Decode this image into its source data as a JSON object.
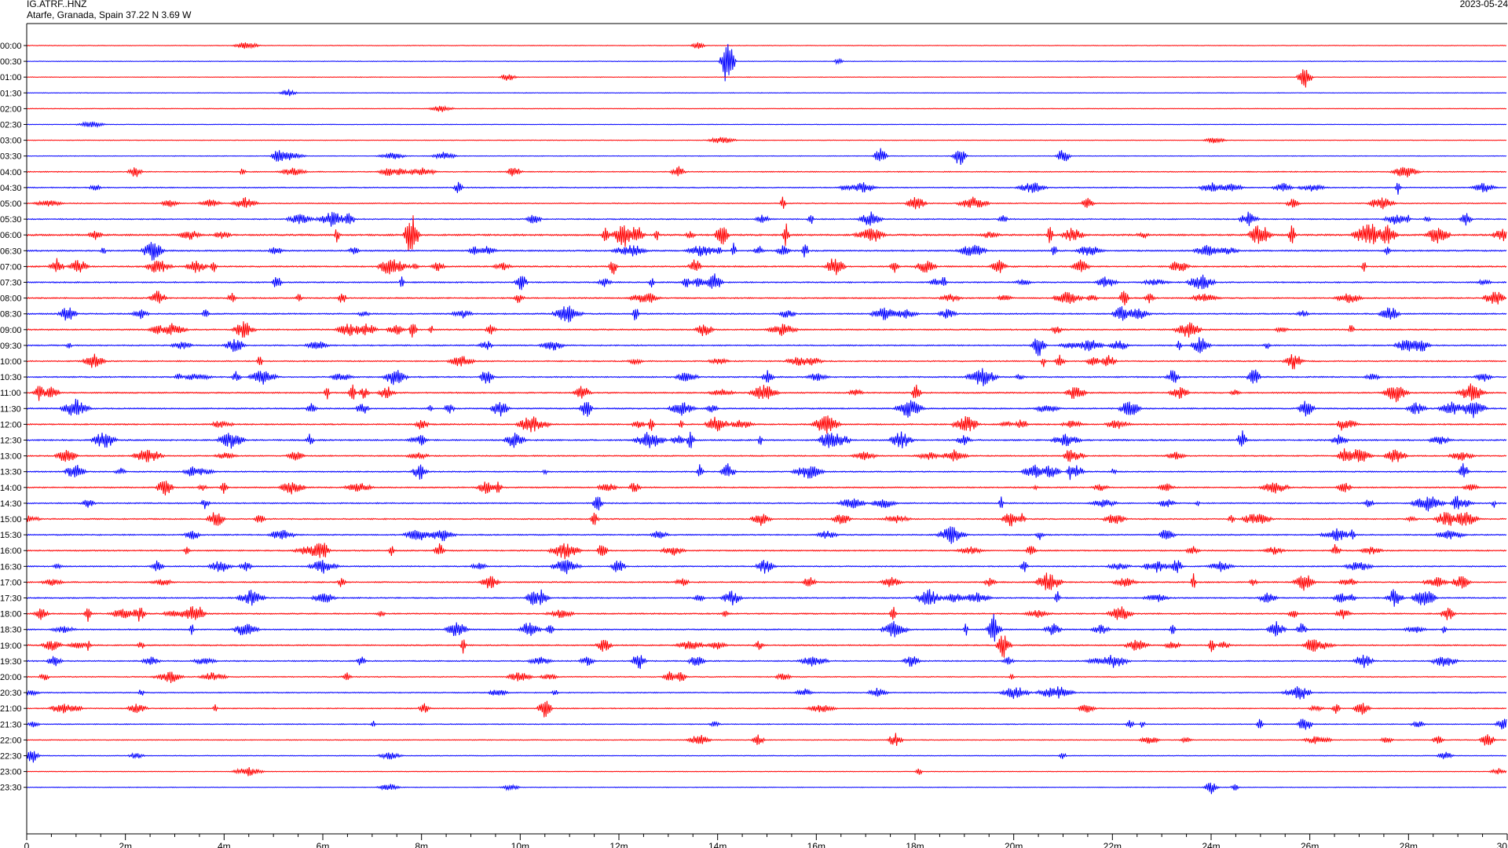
{
  "header": {
    "station": "IG.ATRF..HNZ",
    "location": "Atarfe, Granada, Spain  37.22 N 3.69 W",
    "date": "2023-05-24"
  },
  "colors": {
    "even_rows": "#ff0000",
    "odd_rows": "#0000ff",
    "axis": "#000000",
    "background": "#ffffff"
  },
  "chart_data": {
    "type": "line",
    "title": "",
    "xlabel": "",
    "ylabel": "",
    "x_unit": "minutes",
    "xlim": [
      0,
      30
    ],
    "x_ticks": [
      "0",
      "2m",
      "4m",
      "6m",
      "8m",
      "10m",
      "12m",
      "14m",
      "16m",
      "18m",
      "20m",
      "22m",
      "24m",
      "26m",
      "28m",
      "30"
    ],
    "x_tick_values": [
      0,
      2,
      4,
      6,
      8,
      10,
      12,
      14,
      16,
      18,
      20,
      22,
      24,
      26,
      28,
      30
    ],
    "row_labels": [
      "00:00",
      "00:30",
      "01:00",
      "01:30",
      "02:00",
      "02:30",
      "03:00",
      "03:30",
      "04:00",
      "04:30",
      "05:00",
      "05:30",
      "06:00",
      "06:30",
      "07:00",
      "07:30",
      "08:00",
      "08:30",
      "09:00",
      "09:30",
      "10:00",
      "10:30",
      "11:00",
      "11:30",
      "12:00",
      "12:30",
      "13:00",
      "13:30",
      "14:00",
      "14:30",
      "15:00",
      "15:30",
      "16:00",
      "16:30",
      "17:00",
      "17:30",
      "18:00",
      "18:30",
      "19:00",
      "19:30",
      "20:00",
      "20:30",
      "21:00",
      "21:30",
      "22:00",
      "22:30",
      "23:00",
      "23:30"
    ],
    "row_activity": [
      0.05,
      0.05,
      0.05,
      0.05,
      0.05,
      0.05,
      0.06,
      0.1,
      0.3,
      0.4,
      0.4,
      0.5,
      0.9,
      0.7,
      0.7,
      0.6,
      0.6,
      0.6,
      0.6,
      0.55,
      0.55,
      0.6,
      0.6,
      0.65,
      0.65,
      0.7,
      0.55,
      0.55,
      0.55,
      0.55,
      0.55,
      0.55,
      0.55,
      0.55,
      0.6,
      0.6,
      0.6,
      0.55,
      0.55,
      0.5,
      0.4,
      0.4,
      0.35,
      0.3,
      0.25,
      0.15,
      0.1,
      0.1
    ],
    "events": [
      {
        "row": 1,
        "minute": 14.2,
        "amplitude": 4.0
      },
      {
        "row": 0,
        "minute": 13.6,
        "amplitude": 0.6
      },
      {
        "row": 2,
        "minute": 25.9,
        "amplitude": 1.8
      },
      {
        "row": 7,
        "minute": 5.1,
        "amplitude": 1.3
      },
      {
        "row": 7,
        "minute": 17.3,
        "amplitude": 1.2
      },
      {
        "row": 7,
        "minute": 18.9,
        "amplitude": 1.5
      },
      {
        "row": 7,
        "minute": 21.0,
        "amplitude": 1.2
      },
      {
        "row": 8,
        "minute": 2.2,
        "amplitude": 0.9
      },
      {
        "row": 8,
        "minute": 13.2,
        "amplitude": 1.0
      },
      {
        "row": 12,
        "minute": 7.8,
        "amplitude": 3.5
      },
      {
        "row": 19,
        "minute": 20.5,
        "amplitude": 1.8
      },
      {
        "row": 37,
        "minute": 19.6,
        "amplitude": 2.5
      },
      {
        "row": 38,
        "minute": 19.8,
        "amplitude": 2.0
      },
      {
        "row": 39,
        "minute": 12.4,
        "amplitude": 1.5
      },
      {
        "row": 41,
        "minute": 25.8,
        "amplitude": 1.5
      },
      {
        "row": 42,
        "minute": 10.5,
        "amplitude": 1.5
      },
      {
        "row": 43,
        "minute": 25.9,
        "amplitude": 1.3
      },
      {
        "row": 44,
        "minute": 17.6,
        "amplitude": 1.2
      },
      {
        "row": 44,
        "minute": 29.6,
        "amplitude": 1.2
      },
      {
        "row": 45,
        "minute": 0.1,
        "amplitude": 1.2
      },
      {
        "row": 47,
        "minute": 24.0,
        "amplitude": 1.0
      }
    ]
  }
}
